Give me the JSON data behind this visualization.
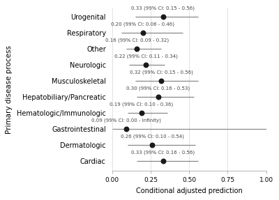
{
  "categories": [
    "Urogenital",
    "Respiratory",
    "Other",
    "Neurologic",
    "Musculoskeletal",
    "Hepatobiliary/Pancreatic",
    "Hematologic/Immunologic",
    "Gastrointestinal",
    "Dermatologic",
    "Cardiac"
  ],
  "estimates": [
    0.33,
    0.2,
    0.16,
    0.22,
    0.32,
    0.3,
    0.19,
    0.09,
    0.26,
    0.33
  ],
  "ci_low": [
    0.15,
    0.06,
    0.09,
    0.11,
    0.15,
    0.16,
    0.1,
    0.0,
    0.1,
    0.16
  ],
  "ci_high": [
    0.56,
    0.46,
    0.32,
    0.34,
    0.56,
    0.53,
    0.36,
    1.0,
    0.54,
    0.56
  ],
  "annotations": [
    "0.33 (99% CI: 0.15 - 0.56)",
    "0.20 (99% CI: 0.06 - 0.46)",
    "0.16 (99% CI: 0.09 - 0.32)",
    "0.22 (99% CI: 0.11 - 0.34)",
    "0.32 (99% CI: 0.15 - 0.56)",
    "0.30 (99% CI: 0.16 - 0.53)",
    "0.19 (99% CI: 0.10 - 0.36)",
    "0.09 (99% CI: 0.00 - infinity)",
    "0.26 (99% CI: 0.10 - 0.54)",
    "0.33 (99% CI: 0.16 - 0.56)"
  ],
  "ann_x_positions": [
    0.33,
    0.2,
    0.16,
    0.22,
    0.32,
    0.3,
    0.19,
    0.09,
    0.26,
    0.33
  ],
  "xlim": [
    0.0,
    1.0
  ],
  "xticks": [
    0.0,
    0.25,
    0.5,
    0.75,
    1.0
  ],
  "xtick_labels": [
    "0.00",
    "0.25",
    "0.50",
    "0.75",
    "1.00"
  ],
  "xlabel": "Conditional adjusted prediction",
  "ylabel": "Primary disease process",
  "dot_color": "#1a1a1a",
  "line_color": "#888888",
  "grid_color": "#dddddd",
  "bg_color": "#ffffff",
  "annotation_fontsize": 5.0,
  "label_fontsize": 7.0,
  "ylabel_fontsize": 7.5,
  "tick_fontsize": 6.5,
  "dot_size": 22
}
